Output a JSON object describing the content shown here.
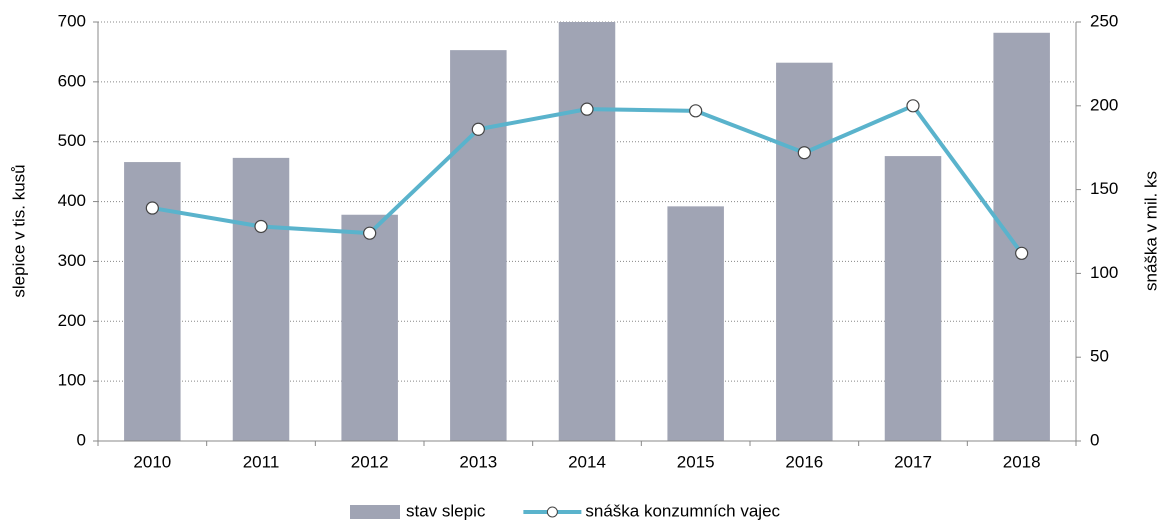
{
  "chart_data": {
    "type": "bar_line",
    "categories": [
      "2010",
      "2011",
      "2012",
      "2013",
      "2014",
      "2015",
      "2016",
      "2017",
      "2018"
    ],
    "series": [
      {
        "name": "stav slepic",
        "type": "bar",
        "color": "#a0a4b4",
        "values": [
          466,
          473,
          378,
          653,
          700,
          392,
          632,
          476,
          682
        ]
      },
      {
        "name": "snáška konzumních vajec",
        "type": "line",
        "axis": "y2",
        "color": "#5ab3cc",
        "values": [
          139,
          128,
          124,
          186,
          198,
          197,
          172,
          200,
          112
        ]
      }
    ],
    "ylabel": "slepice v tis. kusů",
    "y2label": "snáška v mil. ks",
    "ylim": [
      0,
      700
    ],
    "yticks": [
      0,
      100,
      200,
      300,
      400,
      500,
      600,
      700
    ],
    "y2lim": [
      0,
      250
    ],
    "y2ticks": [
      0,
      50,
      100,
      150,
      200,
      250
    ],
    "grid": true,
    "legend": "bottom"
  }
}
